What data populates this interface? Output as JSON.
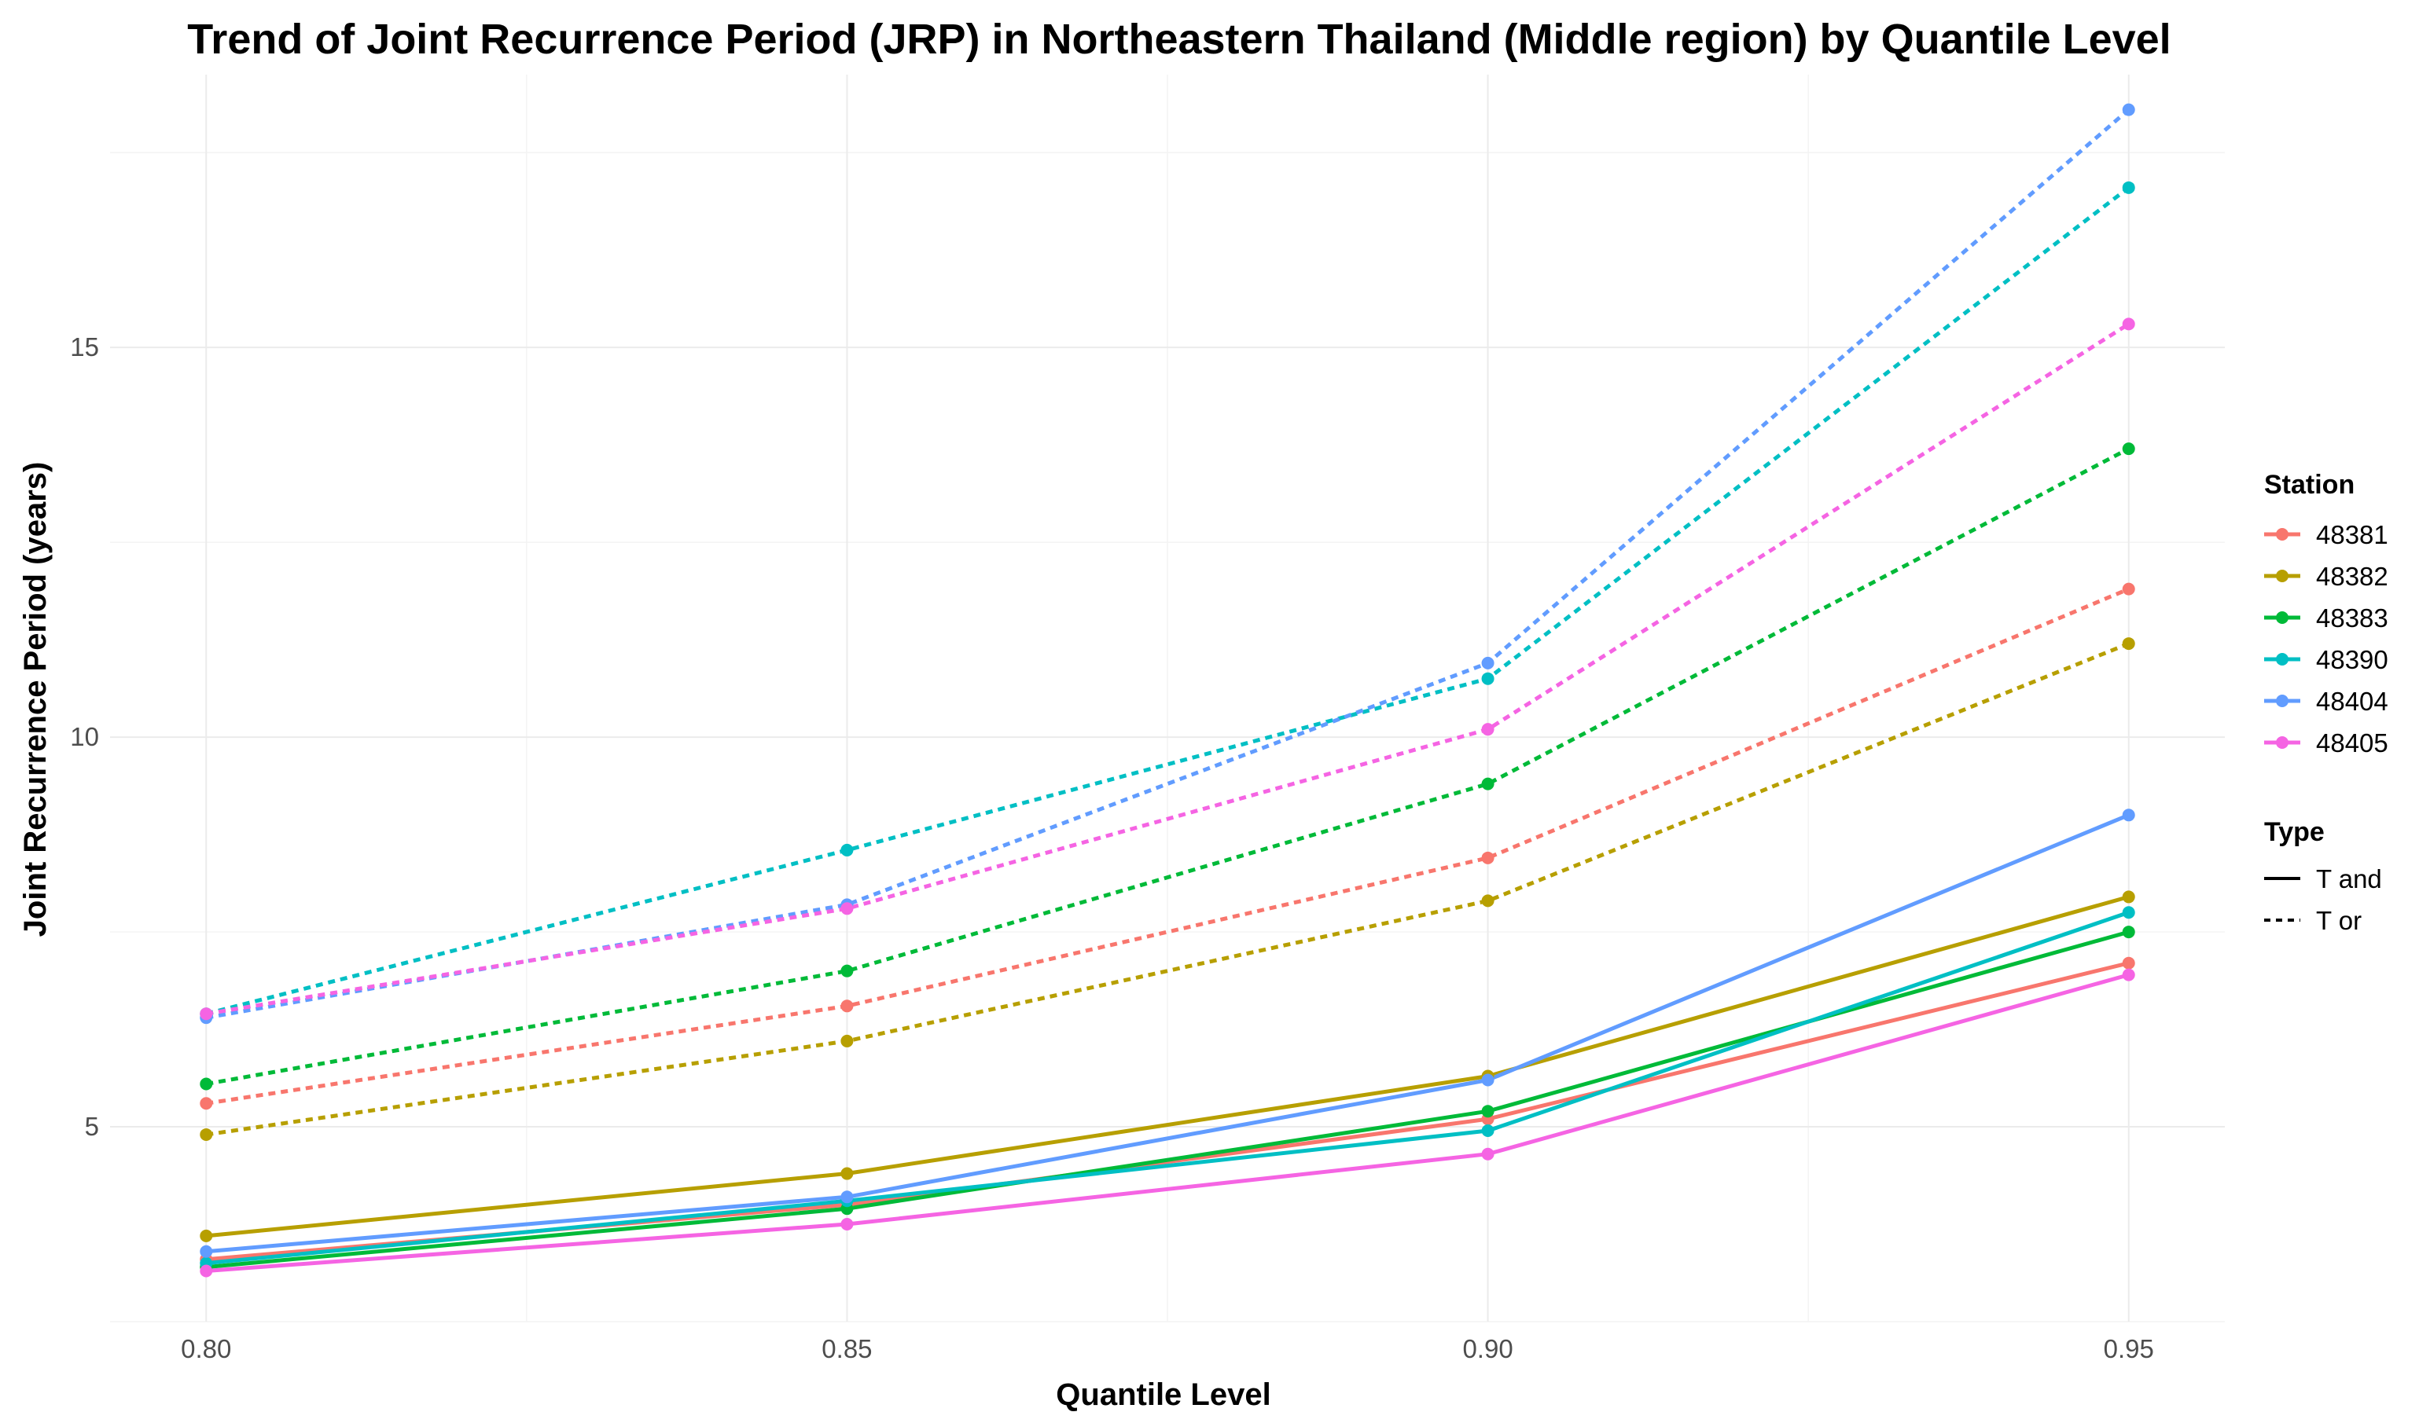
{
  "chart_data": {
    "type": "line",
    "title": "Trend of Joint Recurrence Period (JRP) in Northeastern Thailand (Middle region) by Quantile Level",
    "xlabel": "Quantile Level",
    "ylabel": "Joint Recurrence Period (years)",
    "x": [
      0.8,
      0.85,
      0.9,
      0.95
    ],
    "x_tick_labels": [
      "0.80",
      "0.85",
      "0.90",
      "0.95"
    ],
    "xlim": [
      0.7925,
      0.9575
    ],
    "y_ticks": [
      5,
      10,
      15
    ],
    "y_tick_labels": [
      "5",
      "10",
      "15"
    ],
    "ylim": [
      2.5,
      18.5
    ],
    "grid": true,
    "legend": {
      "position": "right",
      "station_title": "Station",
      "type_title": "Type",
      "stations": [
        {
          "label": "48381",
          "color": "#F8766D"
        },
        {
          "label": "48382",
          "color": "#B79F00"
        },
        {
          "label": "48383",
          "color": "#00BA38"
        },
        {
          "label": "48390",
          "color": "#00BFC4"
        },
        {
          "label": "48404",
          "color": "#619CFF"
        },
        {
          "label": "48405",
          "color": "#F564E3"
        }
      ],
      "types": [
        {
          "label": "T and",
          "linestyle": "solid"
        },
        {
          "label": "T or",
          "linestyle": "dashed"
        }
      ]
    },
    "series": [
      {
        "station": "48381",
        "type": "T and",
        "values": [
          3.3,
          4.0,
          5.1,
          7.1
        ]
      },
      {
        "station": "48382",
        "type": "T and",
        "values": [
          3.6,
          4.4,
          5.65,
          7.95
        ]
      },
      {
        "station": "48383",
        "type": "T and",
        "values": [
          3.2,
          3.95,
          5.2,
          7.5
        ]
      },
      {
        "station": "48390",
        "type": "T and",
        "values": [
          3.25,
          4.05,
          4.95,
          7.75
        ]
      },
      {
        "station": "48404",
        "type": "T and",
        "values": [
          3.4,
          4.1,
          5.6,
          9.0
        ]
      },
      {
        "station": "48405",
        "type": "T and",
        "values": [
          3.15,
          3.75,
          4.65,
          6.95
        ]
      },
      {
        "station": "48381",
        "type": "T or",
        "values": [
          5.3,
          6.55,
          8.45,
          11.9
        ]
      },
      {
        "station": "48382",
        "type": "T or",
        "values": [
          4.9,
          6.1,
          7.9,
          11.2
        ]
      },
      {
        "station": "48383",
        "type": "T or",
        "values": [
          5.55,
          7.0,
          9.4,
          13.7
        ]
      },
      {
        "station": "48390",
        "type": "T or",
        "values": [
          6.45,
          8.55,
          10.75,
          17.05
        ]
      },
      {
        "station": "48404",
        "type": "T or",
        "values": [
          6.4,
          7.85,
          10.95,
          18.05
        ]
      },
      {
        "station": "48405",
        "type": "T or",
        "values": [
          6.45,
          7.8,
          10.1,
          15.3
        ]
      }
    ]
  }
}
